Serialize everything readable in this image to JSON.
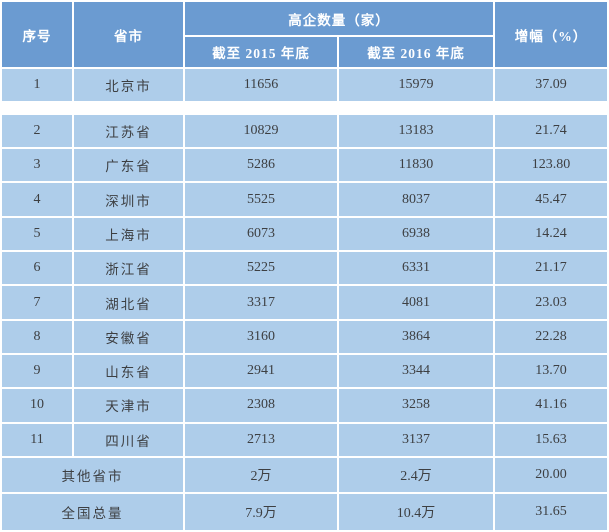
{
  "table": {
    "header": {
      "col_no": "序号",
      "col_region": "省市",
      "col_group": "高企数量（家）",
      "col_2015": "截至 2015 年底",
      "col_2016": "截至 2016 年底",
      "col_growth": "增幅（%）"
    },
    "rows": [
      {
        "no": "1",
        "region": "北京市",
        "y2015": "11656",
        "y2016": "15979",
        "growth": "37.09"
      },
      {
        "no": "2",
        "region": "江苏省",
        "y2015": "10829",
        "y2016": "13183",
        "growth": "21.74"
      },
      {
        "no": "3",
        "region": "广东省",
        "y2015": "5286",
        "y2016": "11830",
        "growth": "123.80"
      },
      {
        "no": "4",
        "region": "深圳市",
        "y2015": "5525",
        "y2016": "8037",
        "growth": "45.47"
      },
      {
        "no": "5",
        "region": "上海市",
        "y2015": "6073",
        "y2016": "6938",
        "growth": "14.24"
      },
      {
        "no": "6",
        "region": "浙江省",
        "y2015": "5225",
        "y2016": "6331",
        "growth": "21.17"
      },
      {
        "no": "7",
        "region": "湖北省",
        "y2015": "3317",
        "y2016": "4081",
        "growth": "23.03"
      },
      {
        "no": "8",
        "region": "安徽省",
        "y2015": "3160",
        "y2016": "3864",
        "growth": "22.28"
      },
      {
        "no": "9",
        "region": "山东省",
        "y2015": "2941",
        "y2016": "3344",
        "growth": "13.70"
      },
      {
        "no": "10",
        "region": "天津市",
        "y2015": "2308",
        "y2016": "3258",
        "growth": "41.16"
      },
      {
        "no": "11",
        "region": "四川省",
        "y2015": "2713",
        "y2016": "3137",
        "growth": "15.63"
      }
    ],
    "footer_rows": [
      {
        "label": "其他省市",
        "y2015": "2万",
        "y2016": "2.4万",
        "growth": "20.00"
      },
      {
        "label": "全国总量",
        "y2015": "7.9万",
        "y2016": "10.4万",
        "growth": "31.65"
      }
    ],
    "colors": {
      "header_bg": "#6b9bd1",
      "row_bg": "#aecdea",
      "grid": "#ffffff",
      "header_text": "#ffffff",
      "body_text": "#3d3f42"
    }
  },
  "chart_data": {
    "type": "table",
    "title": "",
    "columns": [
      "序号",
      "省市",
      "高企数量（家）截至 2015 年底",
      "高企数量（家）截至 2016 年底",
      "增幅（%）"
    ],
    "rows": [
      [
        "1",
        "北京市",
        11656,
        15979,
        37.09
      ],
      [
        "2",
        "江苏省",
        10829,
        13183,
        21.74
      ],
      [
        "3",
        "广东省",
        5286,
        11830,
        123.8
      ],
      [
        "4",
        "深圳市",
        5525,
        8037,
        45.47
      ],
      [
        "5",
        "上海市",
        6073,
        6938,
        14.24
      ],
      [
        "6",
        "浙江省",
        5225,
        6331,
        21.17
      ],
      [
        "7",
        "湖北省",
        3317,
        4081,
        23.03
      ],
      [
        "8",
        "安徽省",
        3160,
        3864,
        22.28
      ],
      [
        "9",
        "山东省",
        2941,
        3344,
        13.7
      ],
      [
        "10",
        "天津市",
        2308,
        3258,
        41.16
      ],
      [
        "11",
        "四川省",
        2713,
        3137,
        15.63
      ],
      [
        "",
        "其他省市",
        "2万",
        "2.4万",
        20.0
      ],
      [
        "",
        "全国总量",
        "7.9万",
        "10.4万",
        31.65
      ]
    ]
  }
}
